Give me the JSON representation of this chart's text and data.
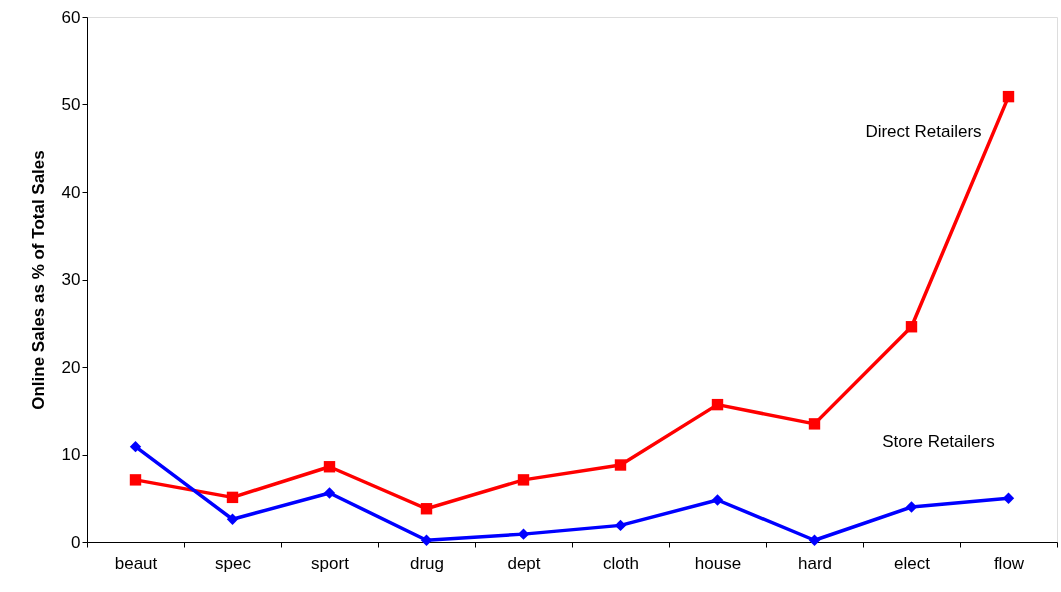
{
  "chart_data": {
    "type": "line",
    "ylabel": "Online Sales as % of Total Sales",
    "categories": [
      "beaut",
      "spec",
      "sport",
      "drug",
      "dept",
      "cloth",
      "house",
      "hard",
      "elect",
      "flow"
    ],
    "series": [
      {
        "name": "Direct Retailers",
        "color": "#ff0000",
        "marker": "square",
        "values": [
          7.1,
          5.1,
          8.6,
          3.8,
          7.1,
          8.8,
          15.7,
          13.5,
          24.6,
          50.9
        ]
      },
      {
        "name": "Store Retailers",
        "color": "#0000ff",
        "marker": "diamond",
        "values": [
          10.9,
          2.6,
          5.6,
          0.2,
          0.9,
          1.9,
          4.8,
          0.2,
          4.0,
          5.0
        ]
      }
    ],
    "ylim": [
      0,
      60
    ],
    "yticks": [
      0,
      10,
      20,
      30,
      40,
      50,
      60
    ],
    "grid": false,
    "legend": false,
    "line_style": "solid"
  }
}
